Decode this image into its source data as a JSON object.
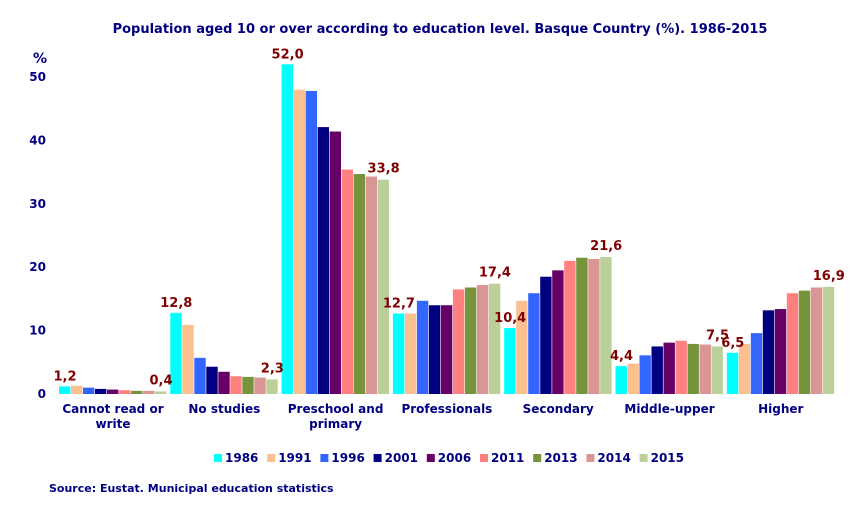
{
  "chart_data": {
    "type": "bar",
    "title": "Population aged 10 or over according to education level. Basque Country (%). 1986-2015",
    "ylabel": "%",
    "xlabel": "",
    "ylim": [
      0,
      50
    ],
    "yticks": [
      0,
      10,
      20,
      30,
      40,
      50
    ],
    "grid": false,
    "legend": "bottom",
    "categories": [
      "Cannot read or write",
      "No studies",
      "Preschool and primary",
      "Professionals",
      "Secondary",
      "Middle-upper",
      "Higher"
    ],
    "category_lines": [
      [
        "Cannot read or",
        "write"
      ],
      [
        "No studies"
      ],
      [
        "Preschool and",
        "primary"
      ],
      [
        "Professionals"
      ],
      [
        "Secondary"
      ],
      [
        "Middle-upper"
      ],
      [
        "Higher"
      ]
    ],
    "series": [
      {
        "name": "1986",
        "color": "#00FFFF",
        "values": [
          1.2,
          12.8,
          52.0,
          12.7,
          10.4,
          4.4,
          6.5
        ]
      },
      {
        "name": "1991",
        "color": "#FAC090",
        "values": [
          1.3,
          10.9,
          48.0,
          12.7,
          14.7,
          4.8,
          7.9
        ]
      },
      {
        "name": "1996",
        "color": "#3366FF",
        "values": [
          1.0,
          5.7,
          47.8,
          14.7,
          15.9,
          6.1,
          9.6
        ]
      },
      {
        "name": "2001",
        "color": "#000080",
        "values": [
          0.8,
          4.3,
          42.1,
          14.0,
          18.5,
          7.5,
          13.2
        ]
      },
      {
        "name": "2006",
        "color": "#660066",
        "values": [
          0.7,
          3.5,
          41.4,
          14.0,
          19.5,
          8.1,
          13.4
        ]
      },
      {
        "name": "2011",
        "color": "#FF8080",
        "values": [
          0.6,
          2.8,
          35.4,
          16.5,
          21.0,
          8.4,
          15.9
        ]
      },
      {
        "name": "2013",
        "color": "#77933C",
        "values": [
          0.5,
          2.7,
          34.7,
          16.8,
          21.5,
          7.9,
          16.3
        ]
      },
      {
        "name": "2014",
        "color": "#D99694",
        "values": [
          0.5,
          2.6,
          34.3,
          17.2,
          21.3,
          7.8,
          16.8
        ]
      },
      {
        "name": "2015",
        "color": "#BBCF98",
        "values": [
          0.4,
          2.3,
          33.8,
          17.4,
          21.6,
          7.5,
          16.9
        ]
      }
    ],
    "data_labels": [
      [
        "1,2",
        "0,4"
      ],
      [
        "12,8",
        "2,3"
      ],
      [
        "52,0",
        "33,8"
      ],
      [
        "12,7",
        "17,4"
      ],
      [
        "10,4",
        "21,6"
      ],
      [
        "4,4",
        "7,5"
      ],
      [
        "6,5",
        "16,9"
      ]
    ],
    "label_color": "#800000",
    "axis_color": "#000080"
  },
  "source": "Source: Eustat. Municipal education statistics"
}
